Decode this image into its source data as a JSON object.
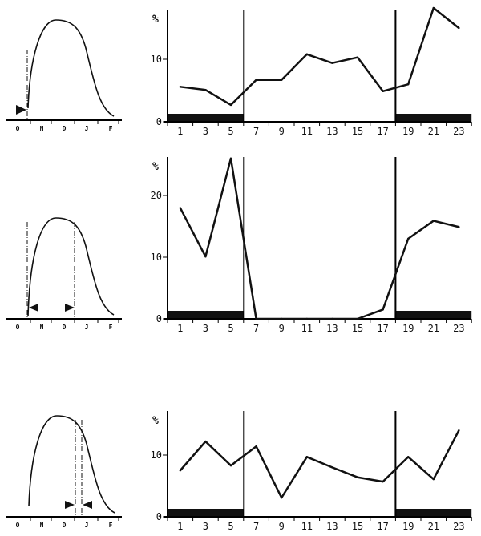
{
  "chart_data": [
    {
      "type": "line",
      "ylabel": "%",
      "ylim": [
        0,
        18
      ],
      "yticks": [
        0,
        10
      ],
      "xticks": [
        1,
        3,
        5,
        7,
        9,
        11,
        13,
        15,
        17,
        19,
        21,
        23
      ],
      "x": [
        1,
        3,
        5,
        7,
        9,
        11,
        13,
        15,
        17,
        19,
        21,
        23
      ],
      "values": [
        5.6,
        5.1,
        2.7,
        6.7,
        6.7,
        10.8,
        9.4,
        10.3,
        4.9,
        6.0,
        18.2,
        15.0
      ],
      "night_bands": [
        [
          0,
          6
        ],
        [
          18,
          24
        ]
      ],
      "vertical_lines": [
        6,
        18
      ],
      "inset": {
        "months": [
          "O",
          "N",
          "D",
          "J",
          "F"
        ],
        "markers": [
          "start-of-season"
        ]
      }
    },
    {
      "type": "line",
      "ylabel": "%",
      "ylim": [
        0,
        26
      ],
      "yticks": [
        0,
        10,
        20
      ],
      "xticks": [
        1,
        3,
        5,
        7,
        9,
        11,
        13,
        15,
        17,
        19,
        21,
        23
      ],
      "x": [
        1,
        3,
        5,
        7,
        9,
        11,
        13,
        15,
        17,
        19,
        21,
        23
      ],
      "values": [
        18.0,
        10.1,
        26.0,
        0,
        0,
        0,
        0,
        0,
        1.5,
        13.0,
        15.9,
        14.9
      ],
      "night_bands": [
        [
          0,
          6
        ],
        [
          18,
          24
        ]
      ],
      "vertical_lines": [
        6,
        18
      ],
      "inset": {
        "months": [
          "O",
          "N",
          "D",
          "J",
          "F"
        ],
        "markers": [
          "early-season",
          "mid-season"
        ]
      }
    },
    {
      "type": "line",
      "ylabel": "%",
      "ylim": [
        0,
        16
      ],
      "yticks": [
        0,
        10
      ],
      "xticks": [
        1,
        3,
        5,
        7,
        9,
        11,
        13,
        15,
        17,
        19,
        21,
        23
      ],
      "x": [
        1,
        3,
        5,
        7,
        9,
        11,
        13,
        15,
        17,
        19,
        21,
        23
      ],
      "values": [
        7.5,
        12.2,
        8.3,
        11.4,
        3.1,
        9.7,
        8.0,
        6.4,
        5.7,
        9.7,
        6.1,
        14.0
      ],
      "night_bands": [
        [
          0,
          6
        ],
        [
          18,
          24
        ]
      ],
      "vertical_lines": [
        6,
        18
      ],
      "inset": {
        "months": [
          "O",
          "N",
          "D",
          "J",
          "F"
        ],
        "markers": [
          "late-season"
        ]
      }
    }
  ]
}
